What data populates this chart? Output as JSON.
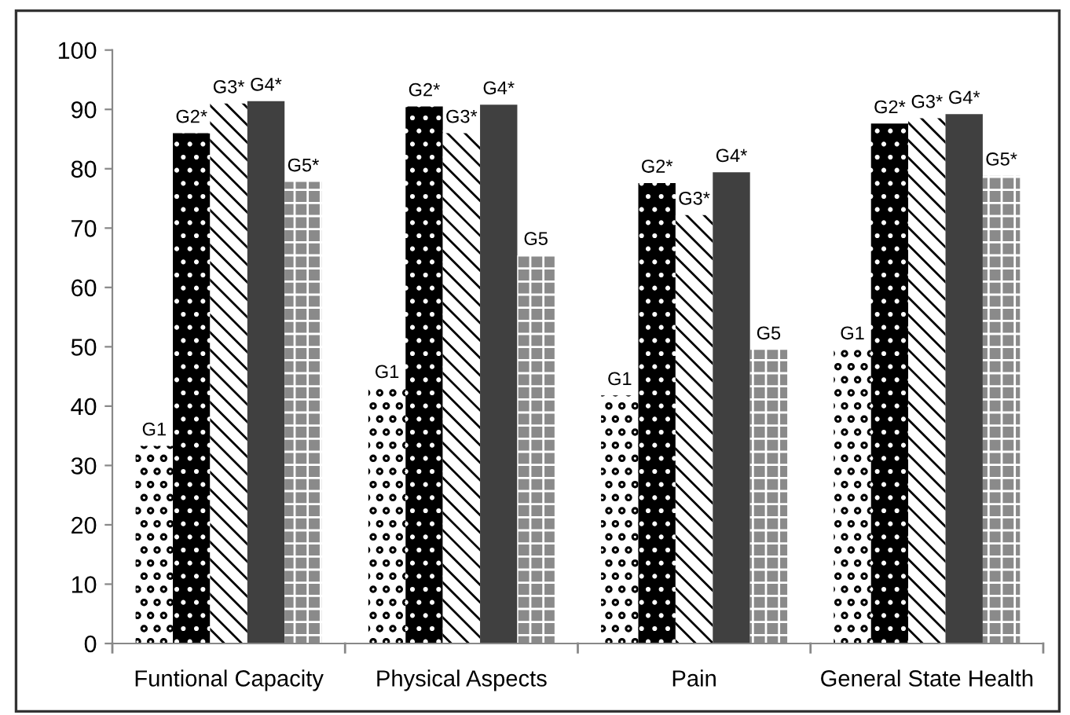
{
  "chart_data": {
    "type": "bar",
    "categories": [
      "Funtional Capacity",
      "Physical Aspects",
      "Pain",
      "General State Health"
    ],
    "series": [
      {
        "color": "#ffffff",
        "values": [
          33.3,
          43,
          41.8,
          49.5
        ],
        "value_labels": [
          "G1",
          "G1",
          "G1",
          "G1"
        ]
      },
      {
        "color": "#000000",
        "values": [
          86,
          90.5,
          77.6,
          87.6
        ],
        "value_labels": [
          "G2*",
          "G2*",
          "G2*",
          "G2*"
        ]
      },
      {
        "color": "#ffffff",
        "values": [
          91,
          86,
          72.2,
          88.5
        ],
        "value_labels": [
          "G3*",
          "G3*",
          "G3*",
          "G3*"
        ]
      },
      {
        "color": "#404040",
        "values": [
          91.4,
          90.8,
          79.4,
          89.2
        ],
        "value_labels": [
          "G4*",
          "G4*",
          "G4*",
          "G4*"
        ]
      },
      {
        "color": "#8a8a8a",
        "values": [
          77.8,
          65.4,
          49.5,
          78.8
        ],
        "value_labels": [
          "G5*",
          "G5",
          "G5",
          "G5*"
        ]
      }
    ],
    "ylim": [
      0,
      100
    ],
    "yticks": [
      0,
      10,
      20,
      30,
      40,
      50,
      60,
      70,
      80,
      90,
      100
    ],
    "grid": false,
    "legend": false
  }
}
